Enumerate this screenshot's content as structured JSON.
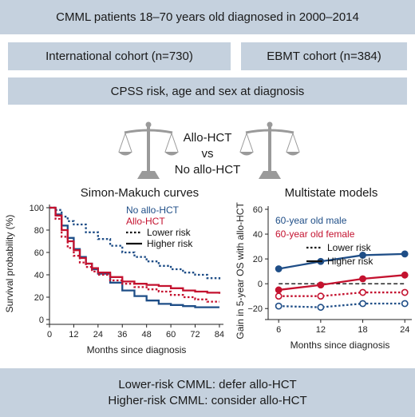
{
  "header": {
    "title": "CMML patients 18–70 years old diagnosed in 2000–2014"
  },
  "cohorts": {
    "international": "International cohort (n=730)",
    "ebmt": "EBMT cohort (n=384)"
  },
  "adjustment": "CPSS risk, age and sex at diagnosis",
  "comparison": {
    "line1": "Allo-HCT",
    "line2": "vs",
    "line3": "No allo-HCT"
  },
  "conclusion": {
    "line1": "Lower-risk CMML: defer allo-HCT",
    "line2": "Higher-risk CMML: consider allo-HCT"
  },
  "colors": {
    "box": "#c5d1de",
    "blue": "#1f4e87",
    "red": "#c4122f"
  },
  "chart_data": [
    {
      "type": "line",
      "title": "Simon-Makuch curves",
      "xlabel": "Months since diagnosis",
      "ylabel": "Survival probability (%)",
      "xlim": [
        0,
        86
      ],
      "ylim": [
        0,
        100
      ],
      "xticks": [
        0,
        12,
        24,
        36,
        48,
        60,
        72,
        84
      ],
      "yticks": [
        0,
        20,
        40,
        60,
        80,
        100
      ],
      "legend": [
        {
          "label": "No allo-HCT",
          "color": "#1f4e87",
          "style": "text"
        },
        {
          "label": "Allo-HCT",
          "color": "#c4122f",
          "style": "text"
        },
        {
          "label": "Lower risk",
          "style": "dotted"
        },
        {
          "label": "Higher risk",
          "style": "solid"
        }
      ],
      "series": [
        {
          "name": "No allo-HCT",
          "risk": "Lower risk",
          "color": "#1f4e87",
          "dash": "dotted",
          "x": [
            0,
            3,
            6,
            9,
            12,
            18,
            24,
            30,
            36,
            42,
            48,
            54,
            60,
            66,
            72,
            78,
            84
          ],
          "y": [
            100,
            98,
            92,
            88,
            85,
            78,
            72,
            66,
            60,
            56,
            52,
            48,
            45,
            42,
            40,
            37,
            35
          ]
        },
        {
          "name": "No allo-HCT",
          "risk": "Higher risk",
          "color": "#1f4e87",
          "dash": "solid",
          "x": [
            0,
            3,
            6,
            9,
            12,
            15,
            18,
            21,
            24,
            30,
            36,
            42,
            48,
            54,
            60,
            66,
            72,
            78,
            84
          ],
          "y": [
            100,
            94,
            84,
            73,
            63,
            56,
            50,
            45,
            41,
            33,
            26,
            21,
            17,
            14,
            13,
            12,
            11,
            11,
            11
          ]
        },
        {
          "name": "Allo-HCT",
          "risk": "Lower risk",
          "color": "#c4122f",
          "dash": "dotted",
          "x": [
            0,
            3,
            6,
            9,
            12,
            15,
            18,
            21,
            24,
            30,
            36,
            42,
            48,
            54,
            60,
            66,
            72,
            78,
            84
          ],
          "y": [
            100,
            90,
            74,
            64,
            57,
            51,
            47,
            43,
            40,
            35,
            32,
            29,
            27,
            25,
            22,
            20,
            18,
            16,
            16
          ]
        },
        {
          "name": "Allo-HCT",
          "risk": "Higher risk",
          "color": "#c4122f",
          "dash": "solid",
          "x": [
            0,
            3,
            6,
            9,
            12,
            15,
            18,
            21,
            24,
            30,
            36,
            42,
            48,
            54,
            60,
            66,
            72,
            78,
            84
          ],
          "y": [
            100,
            93,
            80,
            70,
            62,
            55,
            50,
            46,
            42,
            38,
            34,
            32,
            31,
            30,
            28,
            26,
            25,
            24,
            23
          ]
        }
      ]
    },
    {
      "type": "line",
      "title": "Multistate models",
      "xlabel": "Months since diagnosis",
      "ylabel": "Gain in 5-year OS with allo-HCT (%)",
      "xlim": [
        4.5,
        25
      ],
      "ylim": [
        -25,
        60
      ],
      "xticks": [
        6,
        12,
        18,
        24
      ],
      "yticks": [
        -20,
        0,
        20,
        40,
        60
      ],
      "reference_line": 0,
      "legend": [
        {
          "label": "60-year old male",
          "color": "#1f4e87",
          "style": "text"
        },
        {
          "label": "60-year old female",
          "color": "#c4122f",
          "style": "text"
        },
        {
          "label": "Lower risk",
          "style": "dotted"
        },
        {
          "label": "Higher risk",
          "style": "solid"
        }
      ],
      "series": [
        {
          "name": "60-year old male",
          "risk": "Higher risk",
          "color": "#1f4e87",
          "dash": "solid",
          "marker": "filled",
          "x": [
            6,
            12,
            18,
            24
          ],
          "y": [
            12,
            18,
            23,
            24
          ]
        },
        {
          "name": "60-year old female",
          "risk": "Higher risk",
          "color": "#c4122f",
          "dash": "solid",
          "marker": "filled",
          "x": [
            6,
            12,
            18,
            24
          ],
          "y": [
            -5,
            -1,
            4,
            7
          ]
        },
        {
          "name": "60-year old female",
          "risk": "Lower risk",
          "color": "#c4122f",
          "dash": "dotted",
          "marker": "open",
          "x": [
            6,
            12,
            18,
            24
          ],
          "y": [
            -10,
            -10,
            -7,
            -7
          ]
        },
        {
          "name": "60-year old male",
          "risk": "Lower risk",
          "color": "#1f4e87",
          "dash": "dotted",
          "marker": "open",
          "x": [
            6,
            12,
            18,
            24
          ],
          "y": [
            -18,
            -19,
            -16,
            -16
          ]
        }
      ]
    }
  ]
}
